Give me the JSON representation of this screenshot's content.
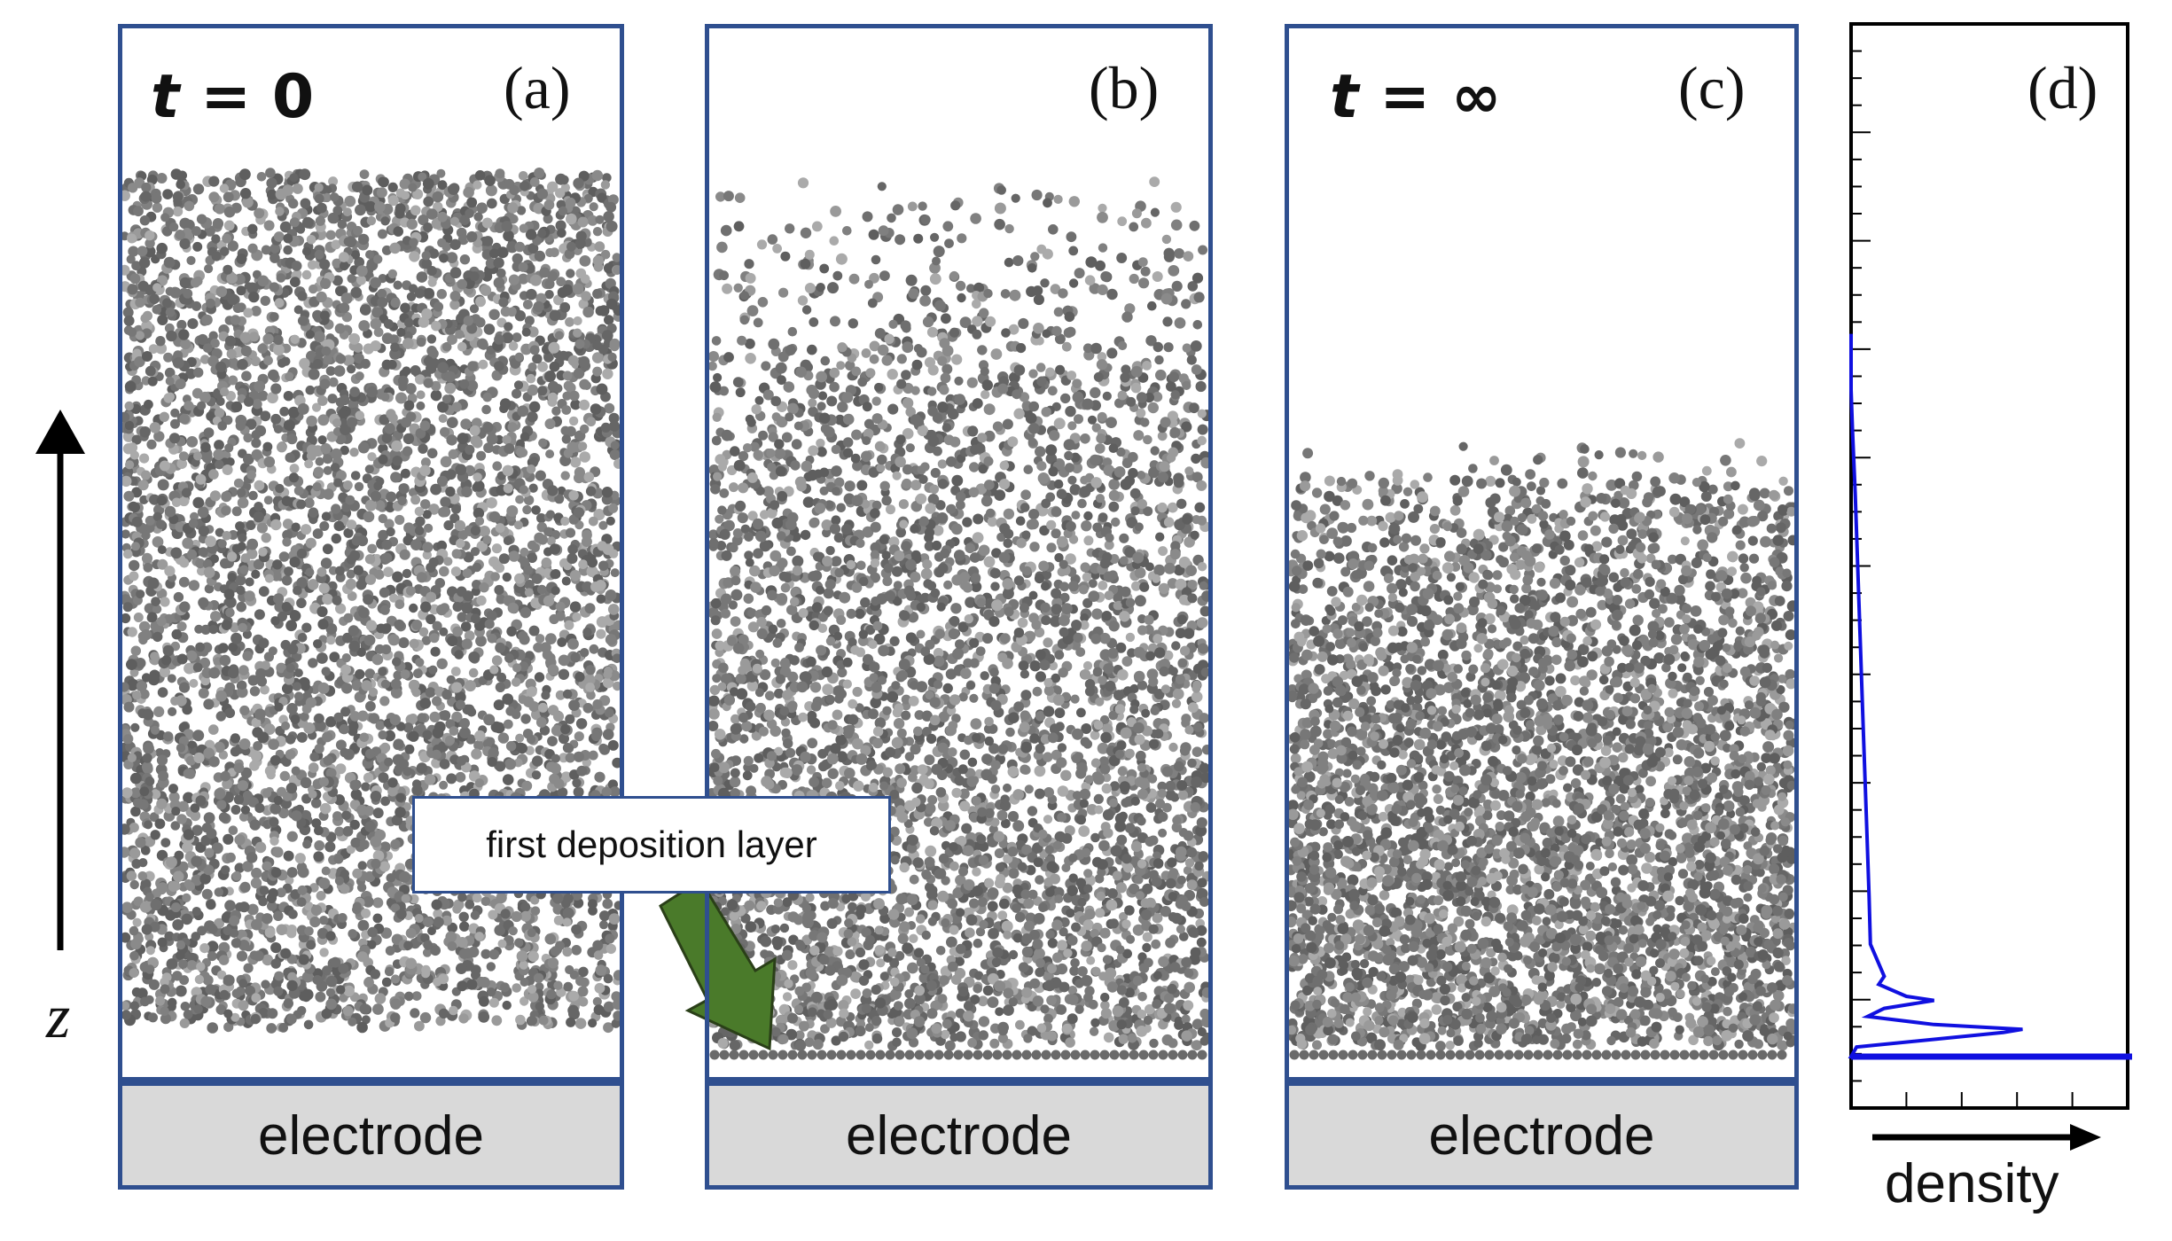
{
  "panels": [
    {
      "letter": "(a)",
      "time_label": "0"
    },
    {
      "letter": "(b)",
      "time_label": ""
    },
    {
      "letter": "(c)",
      "time_label": "∞"
    },
    {
      "letter": "(d)"
    }
  ],
  "time_symbol": "t",
  "electrode_label": "electrode",
  "annotation": "first deposition layer",
  "axis": {
    "z_label": "z",
    "density_label": "density"
  },
  "colors": {
    "frame": "#2f4f8f",
    "particle": "#6b6b6b",
    "particle_light": "#a8a8a8",
    "electrode": "#d9d9d9",
    "arrow_green": "#4a7a2a",
    "profile_line": "#1010e0"
  },
  "chart_data": {
    "type": "line",
    "xlabel": "density",
    "ylabel": "z",
    "series": [
      {
        "x": [
          1.0,
          0.62,
          0.08,
          0.3,
          0.12,
          0.05,
          0.07,
          0.045,
          0.02,
          0.0
        ],
        "y": [
          0.0,
          0.03,
          0.05,
          0.07,
          0.09,
          0.15,
          0.3,
          0.5,
          0.69,
          0.83
        ]
      }
    ],
    "ylim": [
      0,
      1
    ],
    "xlim": [
      0,
      1
    ]
  }
}
